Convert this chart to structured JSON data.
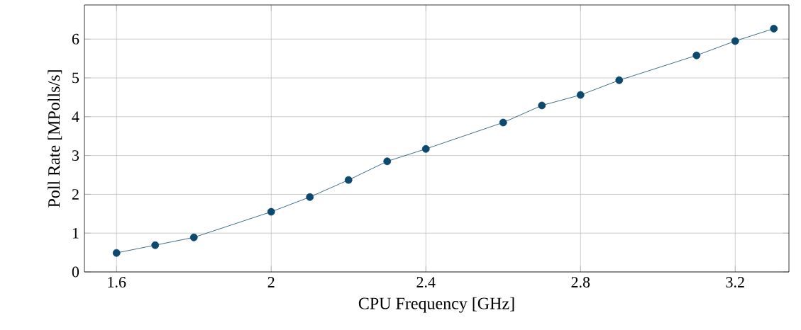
{
  "chart_data": {
    "type": "line",
    "xlabel": "CPU Frequency [GHz]",
    "ylabel": "Poll Rate [MPolls/s]",
    "x": [
      1.6,
      1.7,
      1.8,
      2.0,
      2.1,
      2.2,
      2.3,
      2.4,
      2.6,
      2.7,
      2.8,
      2.9,
      3.1,
      3.2,
      3.3
    ],
    "series": [
      {
        "color": "#0b4a6e",
        "values": [
          0.49,
          0.69,
          0.89,
          1.55,
          1.93,
          2.37,
          2.85,
          3.17,
          3.85,
          4.29,
          4.56,
          4.94,
          5.58,
          5.95,
          6.27
        ]
      }
    ],
    "xlim": [
      1.517,
      3.339
    ],
    "ylim": [
      0,
      6.88
    ],
    "xticks": [
      {
        "value": 1.6,
        "label": "1.6"
      },
      2,
      {
        "value": 2.4,
        "label": "2.4"
      },
      {
        "value": 2.8,
        "label": "2.8"
      },
      {
        "value": 3.2,
        "label": "3.2"
      }
    ],
    "yticks": [
      0,
      1,
      2,
      3,
      4,
      5,
      6
    ],
    "grid": true,
    "marker": "circle",
    "line_style": "solid"
  }
}
